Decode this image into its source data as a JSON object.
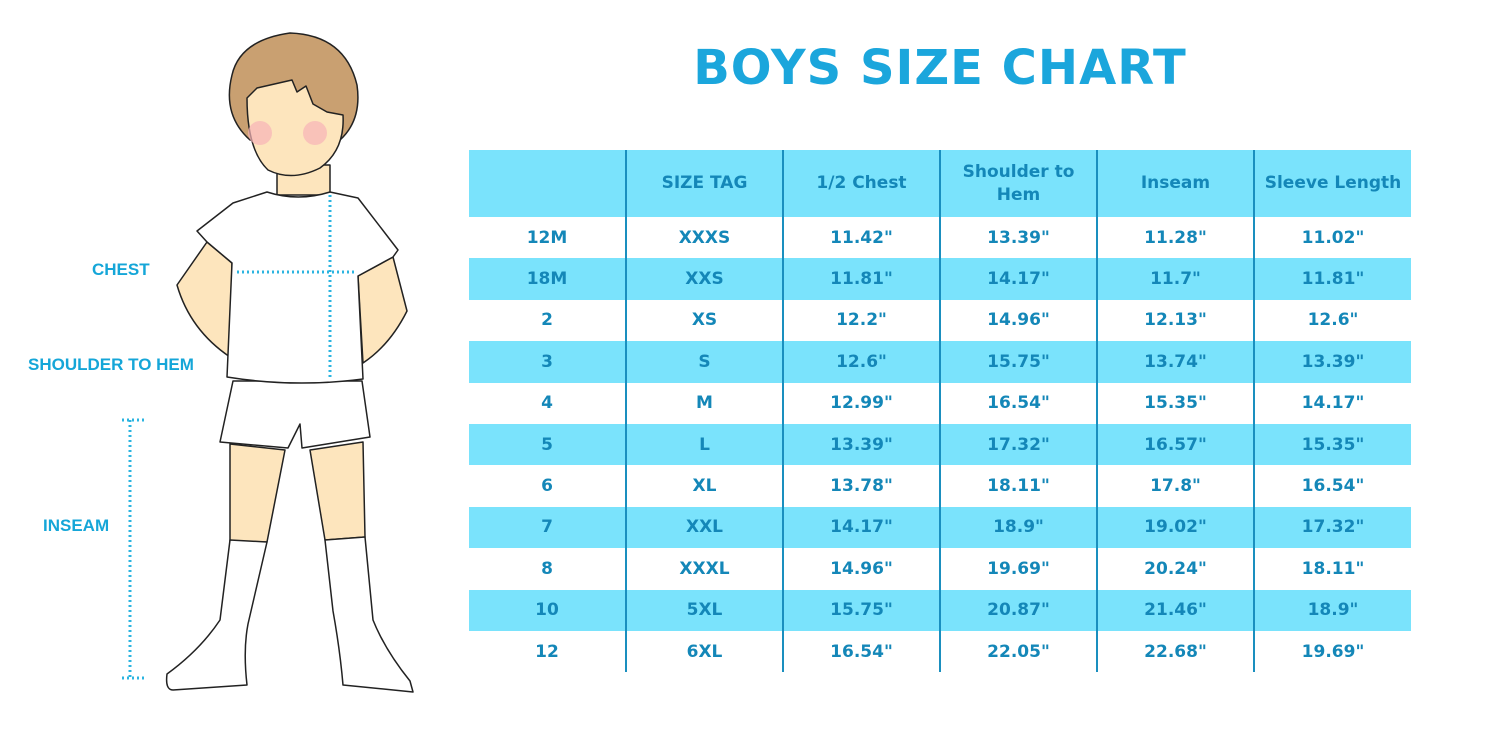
{
  "title": "BOYS SIZE CHART",
  "figure_labels": {
    "chest": "CHEST",
    "shoulder_to_hem": "SHOULDER TO HEM",
    "inseam": "INSEAM"
  },
  "colors": {
    "accent": "#1ba6dc",
    "row_highlight": "#7ae3fc",
    "table_text": "#1487b8"
  },
  "chart_data": {
    "type": "table",
    "title": "BOYS SIZE CHART",
    "columns": [
      "",
      "SIZE TAG",
      "1/2 Chest",
      "Shoulder to Hem",
      "Inseam",
      "Sleeve Length"
    ],
    "rows": [
      [
        "12M",
        "XXXS",
        "11.42\"",
        "13.39\"",
        "11.28\"",
        "11.02\""
      ],
      [
        "18M",
        "XXS",
        "11.81\"",
        "14.17\"",
        "11.7\"",
        "11.81\""
      ],
      [
        "2",
        "XS",
        "12.2\"",
        "14.96\"",
        "12.13\"",
        "12.6\""
      ],
      [
        "3",
        "S",
        "12.6\"",
        "15.75\"",
        "13.74\"",
        "13.39\""
      ],
      [
        "4",
        "M",
        "12.99\"",
        "16.54\"",
        "15.35\"",
        "14.17\""
      ],
      [
        "5",
        "L",
        "13.39\"",
        "17.32\"",
        "16.57\"",
        "15.35\""
      ],
      [
        "6",
        "XL",
        "13.78\"",
        "18.11\"",
        "17.8\"",
        "16.54\""
      ],
      [
        "7",
        "XXL",
        "14.17\"",
        "18.9\"",
        "19.02\"",
        "17.32\""
      ],
      [
        "8",
        "XXXL",
        "14.96\"",
        "19.69\"",
        "20.24\"",
        "18.11\""
      ],
      [
        "10",
        "5XL",
        "15.75\"",
        "20.87\"",
        "21.46\"",
        "18.9\""
      ],
      [
        "12",
        "6XL",
        "16.54\"",
        "22.05\"",
        "22.68\"",
        "19.69\""
      ]
    ]
  }
}
